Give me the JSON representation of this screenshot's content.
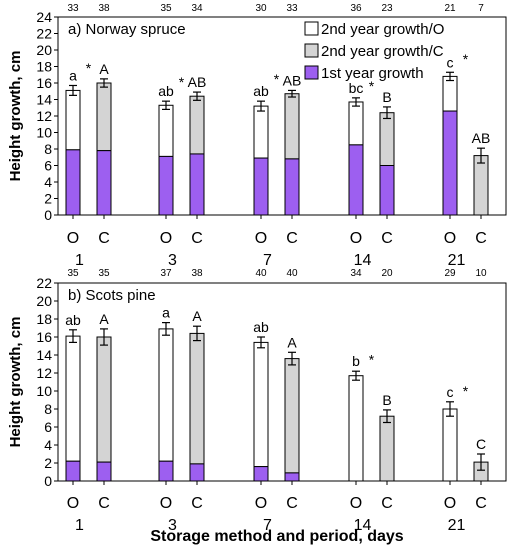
{
  "colors": {
    "first_year": "#9d5ff0",
    "second_year_C": "#d4d4d4",
    "second_year_O": "#ffffff",
    "axis": "#000000"
  },
  "x_label": "Storage method and period, days",
  "chart_data": [
    {
      "type": "bar",
      "stacked": true,
      "title": "a) Norway spruce",
      "ylabel": "Height growth, cm",
      "ylim": [
        0,
        24
      ],
      "y_ticks": [
        0,
        2,
        4,
        6,
        8,
        10,
        12,
        14,
        16,
        18,
        20,
        22,
        24
      ],
      "grid": false,
      "legend": [
        {
          "key": "second_O",
          "label": "2nd year growth/O"
        },
        {
          "key": "second_C",
          "label": "2nd year growth/C"
        },
        {
          "key": "first",
          "label": "1st year growth"
        }
      ],
      "legend_position": "top-right",
      "groups": [
        "1",
        "3",
        "7",
        "14",
        "21"
      ],
      "categories": [
        "O",
        "C",
        "O",
        "C",
        "O",
        "C",
        "O",
        "C",
        "O",
        "C"
      ],
      "first_year": [
        7.9,
        7.8,
        7.1,
        7.4,
        6.9,
        6.8,
        8.5,
        6.0,
        12.6,
        0
      ],
      "total": [
        15.1,
        16.0,
        13.3,
        14.4,
        13.2,
        14.7,
        13.7,
        12.4,
        16.8,
        7.2
      ],
      "error": [
        0.6,
        0.5,
        0.5,
        0.5,
        0.6,
        0.4,
        0.5,
        0.7,
        0.5,
        0.9
      ],
      "n": [
        "33",
        "38",
        "35",
        "34",
        "30",
        "33",
        "36",
        "23",
        "21",
        "7"
      ],
      "letters": [
        "a",
        "A",
        "ab",
        "AB",
        "ab",
        "AB",
        "bc",
        "B",
        "c",
        "AB"
      ],
      "stars": [
        {
          "after": 0,
          "symbol": "*"
        },
        {
          "after": 2,
          "symbol": "*"
        },
        {
          "after": 4,
          "symbol": "*"
        },
        {
          "after": 6,
          "symbol": "*"
        },
        {
          "after": 8,
          "symbol": "*"
        }
      ]
    },
    {
      "type": "bar",
      "stacked": true,
      "title": "b) Scots pine",
      "ylabel": "Height growth, cm",
      "ylim": [
        0,
        22
      ],
      "y_ticks": [
        0,
        2,
        4,
        6,
        8,
        10,
        12,
        14,
        16,
        18,
        20,
        22
      ],
      "grid": false,
      "groups": [
        "1",
        "3",
        "7",
        "14",
        "21"
      ],
      "categories": [
        "O",
        "C",
        "O",
        "C",
        "O",
        "C",
        "O",
        "C",
        "O",
        "C"
      ],
      "first_year": [
        2.2,
        2.1,
        2.2,
        1.9,
        1.6,
        0.9,
        0,
        0,
        0,
        0
      ],
      "total": [
        16.1,
        16.0,
        16.9,
        16.4,
        15.4,
        13.6,
        11.7,
        7.2,
        8.0,
        2.1
      ],
      "error": [
        0.7,
        0.9,
        0.7,
        0.8,
        0.6,
        0.7,
        0.5,
        0.7,
        0.8,
        0.9
      ],
      "n": [
        "35",
        "35",
        "37",
        "38",
        "40",
        "40",
        "34",
        "20",
        "29",
        "10"
      ],
      "letters": [
        "ab",
        "A",
        "a",
        "A",
        "ab",
        "A",
        "b",
        "B",
        "c",
        "C"
      ],
      "stars": [
        {
          "after": 6,
          "symbol": "*"
        },
        {
          "after": 8,
          "symbol": "*"
        }
      ]
    }
  ]
}
